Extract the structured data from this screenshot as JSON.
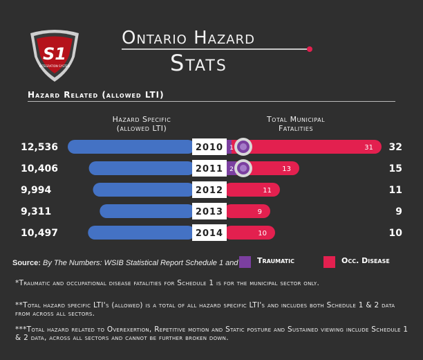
{
  "title": {
    "line1": "Ontario Hazard",
    "line2": "Stats"
  },
  "logo": {
    "mark": "S1",
    "subtext": "INTEGRATION SYSTEM"
  },
  "chart_data": {
    "type": "bar",
    "title": "Hazard Related (allowed LTI)",
    "categories": [
      "2010",
      "2011",
      "2012",
      "2013",
      "2014"
    ],
    "left_header": "Hazard Specific (allowed LTI)",
    "right_header": "Total Municipal Fatalities",
    "left_series": {
      "name": "Hazard Specific (allowed LTI)",
      "values": [
        12536,
        10406,
        9994,
        9311,
        10497
      ],
      "labels": [
        "12,536",
        "10,406",
        "9,994",
        "9,311",
        "10,497"
      ],
      "color": "#4472c4"
    },
    "right_series": [
      {
        "name": "Traumatic",
        "values": [
          1,
          2,
          0,
          0,
          0
        ],
        "color": "#7b3fa0"
      },
      {
        "name": "Occ. Disease",
        "values": [
          31,
          13,
          11,
          9,
          10
        ],
        "color": "#e3204f"
      }
    ],
    "totals": [
      32,
      15,
      11,
      9,
      10
    ]
  },
  "source": {
    "label": "Source:",
    "text": "By The Numbers: WSIB Statistical Report Schedule 1 and 2"
  },
  "legend": [
    {
      "label": "Traumatic",
      "color": "#7b3fa0"
    },
    {
      "label": "Occ. Disease",
      "color": "#e3204f"
    }
  ],
  "notes": [
    "*Traumatic and occupational disease fatalities for Schedule 1 is for the municipal sector only.",
    "**Total hazard specific LTI's (allowed) is a total of all hazard specific LTI's and includes both Schedule 1 & 2 data from across all sectors.",
    "***Total hazard related to Overexertion, Repetitive motion and Static posture and Sustained viewing include Schedule 1 & 2 data, across all sectors and cannot be further broken down."
  ]
}
